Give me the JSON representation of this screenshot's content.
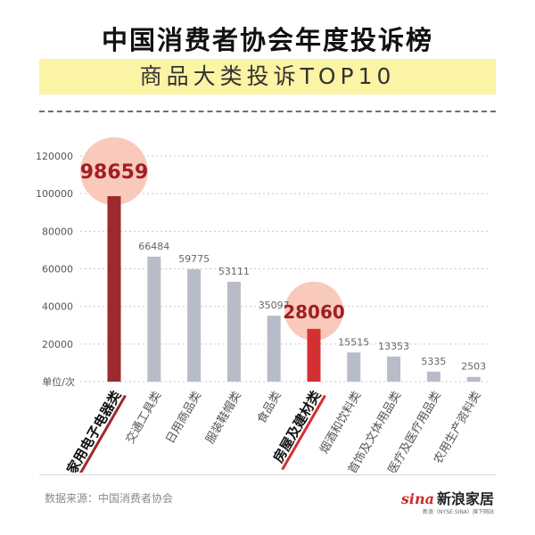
{
  "header": {
    "title": "中国消费者协会年度投诉榜",
    "subtitle": "商品大类投诉TOP10"
  },
  "footer": {
    "source": "数据来源：中国消费者协会",
    "logo_sina": "sina",
    "logo_name": "新浪家居",
    "logo_sub": "新浪（NYSE:SINA）旗下网站"
  },
  "colors": {
    "highlight_bar_1": "#9b2a2c",
    "highlight_bar_2": "#d42f33",
    "default_bar": "#b8bcc8",
    "highlight_circle": "#f9c9bc",
    "subtitle_band": "#fbf4a4"
  },
  "chart_data": {
    "type": "bar",
    "unit_label": "单位/次",
    "ylim": [
      0,
      120000
    ],
    "yticks": [
      20000,
      40000,
      60000,
      80000,
      100000,
      120000
    ],
    "categories": [
      "家用电子电器类",
      "交通工具类",
      "日用商品类",
      "服装鞋帽类",
      "食品类",
      "房屋及建材类",
      "烟酒和饮料类",
      "首饰及文体用品类",
      "医疗及医疗用品类",
      "农用生产资料类"
    ],
    "values": [
      98659,
      66484,
      59775,
      53111,
      35097,
      28060,
      15515,
      13353,
      5335,
      2503
    ],
    "highlighted": [
      0,
      5
    ]
  }
}
